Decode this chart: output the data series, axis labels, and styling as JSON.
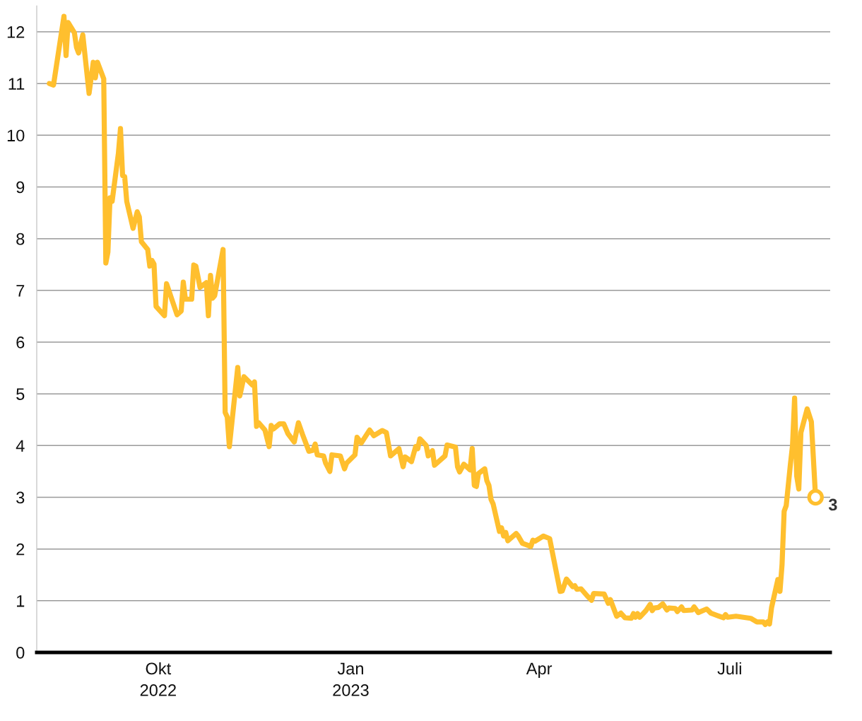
{
  "chart_data": {
    "type": "line",
    "x": [
      "2022-08-10",
      "2022-08-12",
      "2022-08-17",
      "2022-08-18",
      "2022-08-19",
      "2022-08-22",
      "2022-08-23",
      "2022-08-24",
      "2022-08-26",
      "2022-08-29",
      "2022-08-31",
      "2022-09-01",
      "2022-09-02",
      "2022-09-05",
      "2022-09-06",
      "2022-09-07",
      "2022-09-08",
      "2022-09-09",
      "2022-09-12",
      "2022-09-13",
      "2022-09-14",
      "2022-09-15",
      "2022-09-16",
      "2022-09-19",
      "2022-09-21",
      "2022-09-22",
      "2022-09-23",
      "2022-09-26",
      "2022-09-27",
      "2022-09-28",
      "2022-09-29",
      "2022-09-30",
      "2022-10-02",
      "2022-10-04",
      "2022-10-05",
      "2022-10-10",
      "2022-10-12",
      "2022-10-13",
      "2022-10-14",
      "2022-10-17",
      "2022-10-18",
      "2022-10-19",
      "2022-10-21",
      "2022-10-24",
      "2022-10-25",
      "2022-10-26",
      "2022-10-27",
      "2022-10-28",
      "2022-11-01",
      "2022-11-02",
      "2022-11-03",
      "2022-11-04",
      "2022-11-08",
      "2022-11-09",
      "2022-11-11",
      "2022-11-15",
      "2022-11-16",
      "2022-11-17",
      "2022-11-18",
      "2022-11-21",
      "2022-11-23",
      "2022-11-24",
      "2022-11-25",
      "2022-11-28",
      "2022-11-30",
      "2022-12-02",
      "2022-12-05",
      "2022-12-07",
      "2022-12-09",
      "2022-12-12",
      "2022-12-14",
      "2022-12-15",
      "2022-12-16",
      "2022-12-19",
      "2022-12-20",
      "2022-12-22",
      "2022-12-23",
      "2022-12-27",
      "2022-12-29",
      "2022-12-30",
      "2023-01-03",
      "2023-01-04",
      "2023-01-06",
      "2023-01-10",
      "2023-01-12",
      "2023-01-16",
      "2023-01-18",
      "2023-01-20",
      "2023-01-24",
      "2023-01-26",
      "2023-01-27",
      "2023-01-30",
      "2023-02-01",
      "2023-02-02",
      "2023-02-03",
      "2023-02-06",
      "2023-02-07",
      "2023-02-09",
      "2023-02-10",
      "2023-02-15",
      "2023-02-16",
      "2023-02-20",
      "2023-02-21",
      "2023-02-22",
      "2023-02-24",
      "2023-02-27",
      "2023-02-28",
      "2023-03-01",
      "2023-03-02",
      "2023-03-03",
      "2023-03-06",
      "2023-03-07",
      "2023-03-08",
      "2023-03-09",
      "2023-03-10",
      "2023-03-13",
      "2023-03-14",
      "2023-03-15",
      "2023-03-16",
      "2023-03-17",
      "2023-03-21",
      "2023-03-22",
      "2023-03-24",
      "2023-03-28",
      "2023-03-29",
      "2023-03-30",
      "2023-04-03",
      "2023-04-06",
      "2023-04-11",
      "2023-04-12",
      "2023-04-14",
      "2023-04-17",
      "2023-04-18",
      "2023-04-19",
      "2023-04-21",
      "2023-04-24",
      "2023-04-26",
      "2023-04-27",
      "2023-05-02",
      "2023-05-04",
      "2023-05-05",
      "2023-05-08",
      "2023-05-10",
      "2023-05-12",
      "2023-05-15",
      "2023-05-16",
      "2023-05-17",
      "2023-05-18",
      "2023-05-19",
      "2023-05-22",
      "2023-05-24",
      "2023-05-25",
      "2023-05-26",
      "2023-05-28",
      "2023-05-30",
      "2023-06-01",
      "2023-06-02",
      "2023-06-05",
      "2023-06-06",
      "2023-06-08",
      "2023-06-09",
      "2023-06-13",
      "2023-06-14",
      "2023-06-16",
      "2023-06-20",
      "2023-06-22",
      "2023-06-24",
      "2023-06-28",
      "2023-06-29",
      "2023-06-30",
      "2023-07-04",
      "2023-07-11",
      "2023-07-14",
      "2023-07-17",
      "2023-07-18",
      "2023-07-19",
      "2023-07-20",
      "2023-07-21",
      "2023-07-24",
      "2023-07-25",
      "2023-07-26",
      "2023-07-27",
      "2023-07-28",
      "2023-07-30",
      "2023-07-31",
      "2023-08-01",
      "2023-08-02",
      "2023-08-03",
      "2023-08-04",
      "2023-08-07",
      "2023-08-09",
      "2023-08-11"
    ],
    "series": [
      {
        "color": "#ffbf2e",
        "values": [
          11.0,
          10.97,
          12.3,
          11.54,
          12.18,
          11.98,
          11.7,
          11.59,
          11.94,
          10.81,
          11.41,
          11.11,
          11.41,
          11.09,
          7.53,
          7.74,
          8.79,
          8.72,
          9.65,
          10.13,
          9.22,
          9.2,
          8.72,
          8.2,
          8.52,
          8.42,
          7.94,
          7.79,
          7.47,
          7.58,
          7.51,
          6.69,
          6.6,
          6.51,
          7.13,
          6.53,
          6.6,
          7.16,
          6.83,
          6.83,
          7.49,
          7.47,
          7.06,
          7.15,
          6.51,
          7.29,
          6.85,
          6.9,
          7.79,
          4.64,
          4.55,
          3.98,
          5.51,
          4.96,
          5.33,
          5.17,
          5.23,
          4.37,
          4.44,
          4.3,
          3.98,
          4.39,
          4.32,
          4.42,
          4.42,
          4.23,
          4.07,
          4.44,
          4.21,
          3.89,
          3.91,
          4.03,
          3.82,
          3.8,
          3.66,
          3.5,
          3.82,
          3.8,
          3.55,
          3.66,
          3.82,
          4.16,
          4.05,
          4.3,
          4.19,
          4.29,
          4.25,
          3.8,
          3.94,
          3.59,
          3.78,
          3.69,
          3.98,
          3.94,
          4.13,
          4.0,
          3.8,
          3.9,
          3.62,
          3.8,
          4.01,
          3.97,
          3.59,
          3.49,
          3.64,
          3.53,
          3.94,
          3.23,
          3.21,
          3.46,
          3.55,
          3.32,
          3.23,
          2.96,
          2.87,
          2.34,
          2.41,
          2.25,
          2.32,
          2.16,
          2.3,
          2.25,
          2.11,
          2.05,
          2.17,
          2.15,
          2.25,
          2.2,
          1.18,
          1.19,
          1.42,
          1.27,
          1.29,
          1.22,
          1.23,
          1.09,
          1.01,
          1.14,
          1.13,
          0.95,
          1.02,
          0.7,
          0.76,
          0.67,
          0.66,
          0.75,
          0.68,
          0.75,
          0.68,
          0.81,
          0.93,
          0.81,
          0.86,
          0.87,
          0.94,
          0.82,
          0.86,
          0.85,
          0.79,
          0.88,
          0.81,
          0.82,
          0.88,
          0.77,
          0.84,
          0.76,
          0.73,
          0.67,
          0.73,
          0.68,
          0.7,
          0.66,
          0.59,
          0.59,
          0.54,
          0.59,
          0.55,
          0.87,
          1.41,
          1.18,
          1.7,
          2.73,
          2.84,
          3.64,
          4.0,
          4.92,
          3.41,
          3.16,
          4.25,
          4.71,
          4.46,
          3.0
        ]
      },
      {
        "type": "scatter",
        "x": [
          "2023-08-11"
        ],
        "values": [
          3
        ],
        "color": "#ffbf2e",
        "marker": "circle",
        "value_labels": [
          "3"
        ]
      }
    ],
    "xlim": [
      "2022-08-04",
      "2023-08-18"
    ],
    "xticks": [
      {
        "value": "2022-10-01",
        "label": "Okt\n2022"
      },
      {
        "value": "2023-01-01",
        "label": "Jan\n2023"
      },
      {
        "value": "2023-04-01",
        "label": "Apr"
      },
      {
        "value": "2023-07-01",
        "label": "Juli"
      }
    ],
    "ylim": [
      0,
      12.5
    ],
    "yticks": [
      0,
      1,
      2,
      3,
      4,
      5,
      6,
      7,
      8,
      9,
      10,
      11,
      12
    ],
    "grid": "y"
  }
}
